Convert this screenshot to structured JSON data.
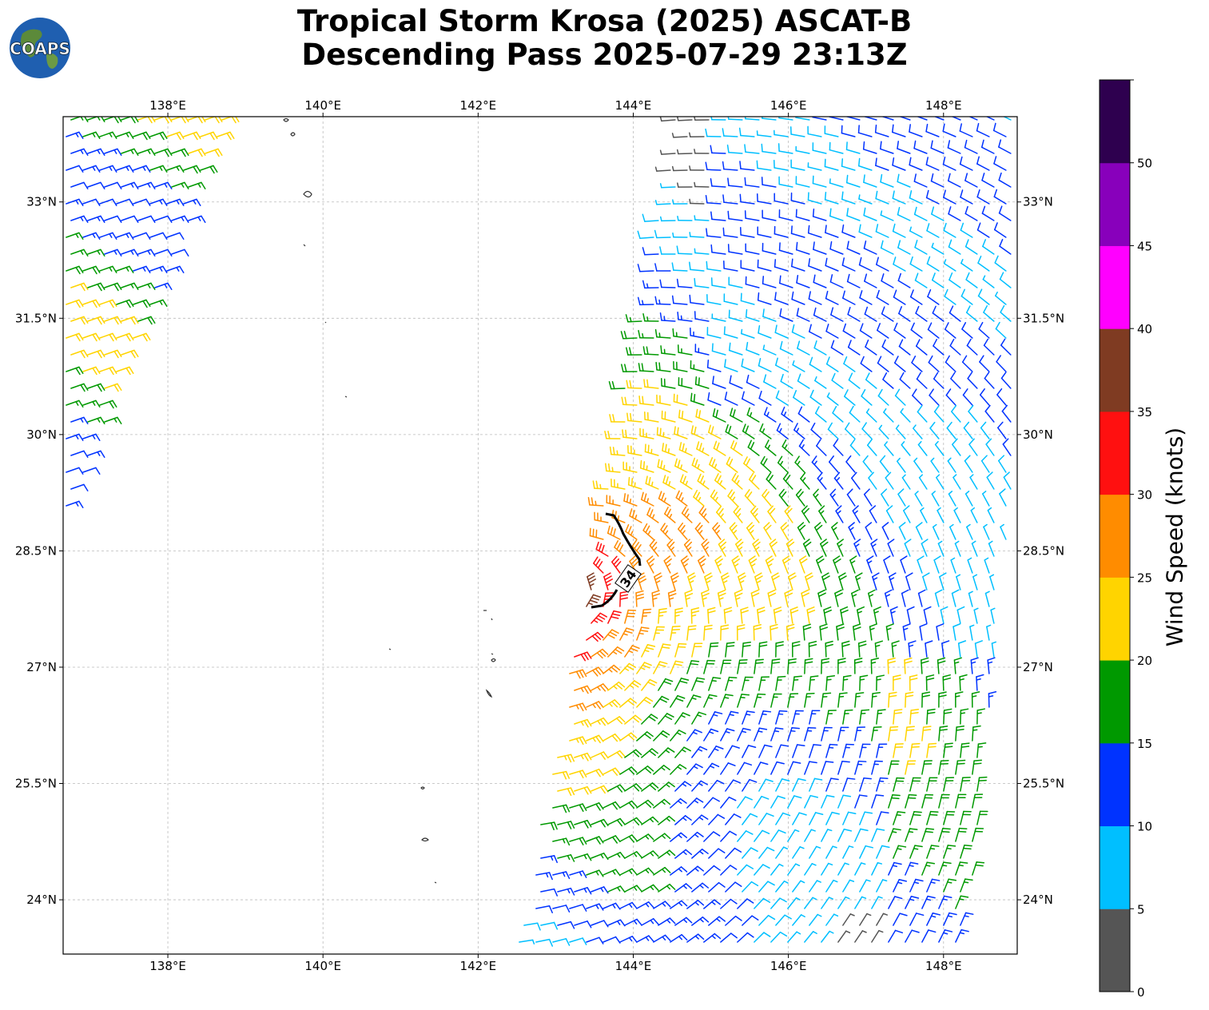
{
  "title": {
    "line1": "Tropical Storm Krosa (2025) ASCAT-B",
    "line2": "Descending Pass 2025-07-29 23:13Z"
  },
  "logo": {
    "text": "COAPS",
    "icon": "globe-logo-icon"
  },
  "map": {
    "lon_range": [
      136.65,
      148.95
    ],
    "lat_range": [
      23.3,
      34.1
    ],
    "lon_ticks": [
      138,
      140,
      142,
      144,
      146,
      148
    ],
    "lon_tick_labels": [
      "138°E",
      "140°E",
      "142°E",
      "144°E",
      "146°E",
      "148°E"
    ],
    "lat_ticks": [
      24,
      25.5,
      27,
      28.5,
      30,
      31.5,
      33
    ],
    "lat_tick_labels": [
      "24°N",
      "25.5°N",
      "27°N",
      "28.5°N",
      "30°N",
      "31.5°N",
      "33°N"
    ],
    "grid": true,
    "contour_label": "34",
    "center_lon": 143.2,
    "center_lat": 28.0
  },
  "colorbar": {
    "label": "Wind Speed (knots)",
    "bounds": [
      0,
      5,
      10,
      15,
      20,
      25,
      30,
      35,
      40,
      45,
      50,
      55
    ],
    "tick_labels": [
      "0",
      "5",
      "10",
      "15",
      "20",
      "25",
      "30",
      "35",
      "40",
      "45",
      "50"
    ],
    "colors": [
      "#555555",
      "#00bfff",
      "#0033ff",
      "#009900",
      "#ffd400",
      "#ff8c00",
      "#ff1010",
      "#7f3b22",
      "#ff00ff",
      "#8800bb",
      "#2e004f"
    ]
  }
}
